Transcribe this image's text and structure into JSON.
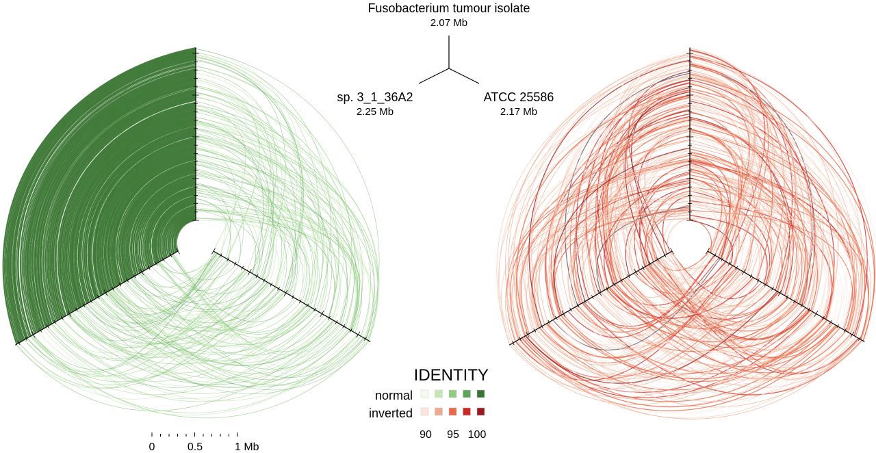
{
  "genomes": {
    "top": {
      "name": "Fusobacterium tumour isolate",
      "size": "2.07 Mb",
      "length_mb": 2.07
    },
    "left": {
      "name": "sp. 3_1_36A2",
      "size": "2.25 Mb",
      "length_mb": 2.25
    },
    "right": {
      "name": "ATCC 25586",
      "size": "2.17 Mb",
      "length_mb": 2.17
    }
  },
  "legend": {
    "title": "IDENTITY",
    "rows": [
      {
        "label": "normal",
        "colors": [
          "#f3faee",
          "#c6e6b8",
          "#8fcc80",
          "#5ea55a",
          "#3b7533"
        ]
      },
      {
        "label": "inverted",
        "colors": [
          "#fde5dc",
          "#eeaa8e",
          "#e8694a",
          "#cc2a25",
          "#961a1f"
        ]
      }
    ],
    "ticks": [
      "90",
      "95",
      "100"
    ]
  },
  "scale_bar": {
    "labels": [
      "0",
      "0.5",
      "1 Mb"
    ],
    "tick_step_mb": 0.1,
    "length_mb": 1
  },
  "plots": [
    {
      "type": "normal",
      "palette": [
        "#c6e6b8",
        "#a8d898",
        "#8fcc80",
        "#5ea55a",
        "#3b7533"
      ]
    },
    {
      "type": "inverted",
      "palette": [
        "#fde5dc",
        "#f4c2ac",
        "#eeaa8e",
        "#e8694a",
        "#cc2a25",
        "#961a1f",
        "#555566"
      ]
    }
  ]
}
